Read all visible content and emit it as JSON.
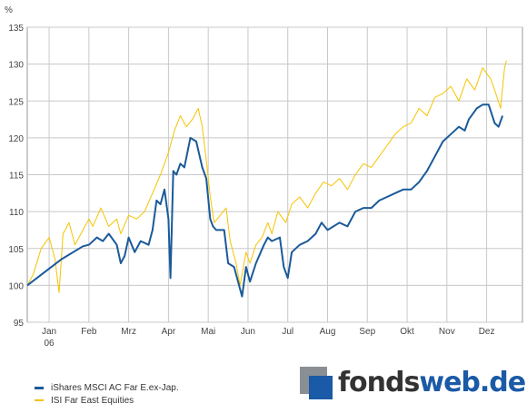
{
  "chart_data": {
    "type": "line",
    "unit_label": "%",
    "ylim": [
      95,
      135
    ],
    "y_ticks": [
      95,
      100,
      105,
      110,
      115,
      120,
      125,
      130,
      135
    ],
    "x_ticks": [
      {
        "label": "Jan",
        "sub": "06",
        "pos": 1.0
      },
      {
        "label": "Feb",
        "sub": "",
        "pos": 2.0
      },
      {
        "label": "Mrz",
        "sub": "",
        "pos": 3.0
      },
      {
        "label": "Apr",
        "sub": "",
        "pos": 4.0
      },
      {
        "label": "Mai",
        "sub": "",
        "pos": 5.0
      },
      {
        "label": "Jun",
        "sub": "",
        "pos": 6.0
      },
      {
        "label": "Jul",
        "sub": "",
        "pos": 7.0
      },
      {
        "label": "Aug",
        "sub": "",
        "pos": 8.0
      },
      {
        "label": "Sep",
        "sub": "",
        "pos": 9.0
      },
      {
        "label": "Okt",
        "sub": "",
        "pos": 10.0
      },
      {
        "label": "Nov",
        "sub": "",
        "pos": 11.0
      },
      {
        "label": "Dez",
        "sub": "",
        "pos": 12.0
      }
    ],
    "xlim": [
      0.45,
      12.9
    ],
    "grid": true,
    "series": [
      {
        "name": "iShares MSCI AC Far E.ex-Jap.",
        "color": "#1a5a9a",
        "points": [
          [
            0.45,
            100.0
          ],
          [
            1.3,
            103.5
          ],
          [
            1.85,
            105.3
          ],
          [
            2.0,
            105.5
          ],
          [
            2.2,
            106.5
          ],
          [
            2.35,
            106.0
          ],
          [
            2.5,
            107.0
          ],
          [
            2.7,
            105.5
          ],
          [
            2.8,
            103.0
          ],
          [
            2.9,
            104.0
          ],
          [
            3.0,
            106.5
          ],
          [
            3.15,
            104.5
          ],
          [
            3.3,
            106.0
          ],
          [
            3.5,
            105.5
          ],
          [
            3.6,
            107.5
          ],
          [
            3.7,
            111.5
          ],
          [
            3.8,
            111.0
          ],
          [
            3.9,
            113.0
          ],
          [
            4.0,
            109.0
          ],
          [
            4.05,
            101.0
          ],
          [
            4.12,
            115.5
          ],
          [
            4.2,
            115.0
          ],
          [
            4.3,
            116.5
          ],
          [
            4.4,
            116.0
          ],
          [
            4.55,
            120.0
          ],
          [
            4.7,
            119.5
          ],
          [
            4.85,
            116.0
          ],
          [
            4.95,
            114.5
          ],
          [
            5.05,
            109.0
          ],
          [
            5.12,
            108.0
          ],
          [
            5.2,
            107.5
          ],
          [
            5.4,
            107.5
          ],
          [
            5.5,
            103.0
          ],
          [
            5.65,
            102.5
          ],
          [
            5.75,
            100.5
          ],
          [
            5.85,
            98.5
          ],
          [
            5.95,
            102.5
          ],
          [
            6.05,
            100.5
          ],
          [
            6.2,
            103.0
          ],
          [
            6.4,
            105.5
          ],
          [
            6.5,
            106.5
          ],
          [
            6.6,
            106.0
          ],
          [
            6.8,
            106.5
          ],
          [
            6.9,
            102.5
          ],
          [
            7.0,
            101.0
          ],
          [
            7.1,
            104.5
          ],
          [
            7.3,
            105.5
          ],
          [
            7.5,
            106.0
          ],
          [
            7.7,
            107.0
          ],
          [
            7.85,
            108.5
          ],
          [
            8.0,
            107.5
          ],
          [
            8.3,
            108.5
          ],
          [
            8.5,
            108.0
          ],
          [
            8.7,
            110.0
          ],
          [
            8.9,
            110.5
          ],
          [
            9.1,
            110.5
          ],
          [
            9.3,
            111.5
          ],
          [
            9.5,
            112.0
          ],
          [
            9.7,
            112.5
          ],
          [
            9.9,
            113.0
          ],
          [
            10.1,
            113.0
          ],
          [
            10.3,
            114.0
          ],
          [
            10.5,
            115.5
          ],
          [
            10.7,
            117.5
          ],
          [
            10.9,
            119.5
          ],
          [
            11.1,
            120.5
          ],
          [
            11.3,
            121.5
          ],
          [
            11.45,
            121.0
          ],
          [
            11.55,
            122.5
          ],
          [
            11.75,
            124.0
          ],
          [
            11.9,
            124.5
          ],
          [
            12.05,
            124.5
          ],
          [
            12.2,
            122.0
          ],
          [
            12.3,
            121.5
          ],
          [
            12.4,
            123.0
          ]
        ]
      },
      {
        "name": "ISI Far East Equities",
        "color": "#f5c400",
        "points": [
          [
            0.45,
            100.0
          ],
          [
            0.6,
            101.5
          ],
          [
            0.8,
            105.0
          ],
          [
            1.0,
            106.5
          ],
          [
            1.15,
            103.5
          ],
          [
            1.25,
            99.0
          ],
          [
            1.35,
            107.0
          ],
          [
            1.5,
            108.5
          ],
          [
            1.65,
            105.5
          ],
          [
            1.8,
            107.0
          ],
          [
            2.0,
            109.0
          ],
          [
            2.1,
            108.0
          ],
          [
            2.3,
            110.5
          ],
          [
            2.5,
            108.0
          ],
          [
            2.7,
            109.0
          ],
          [
            2.8,
            107.0
          ],
          [
            3.0,
            109.5
          ],
          [
            3.2,
            109.0
          ],
          [
            3.4,
            110.0
          ],
          [
            3.6,
            112.5
          ],
          [
            3.8,
            115.0
          ],
          [
            4.0,
            118.0
          ],
          [
            4.15,
            121.0
          ],
          [
            4.3,
            123.0
          ],
          [
            4.45,
            121.5
          ],
          [
            4.6,
            122.5
          ],
          [
            4.75,
            124.0
          ],
          [
            4.85,
            121.5
          ],
          [
            4.95,
            117.0
          ],
          [
            5.05,
            112.0
          ],
          [
            5.15,
            108.5
          ],
          [
            5.3,
            109.5
          ],
          [
            5.45,
            110.5
          ],
          [
            5.55,
            106.0
          ],
          [
            5.7,
            103.0
          ],
          [
            5.8,
            100.0
          ],
          [
            5.95,
            104.5
          ],
          [
            6.05,
            103.0
          ],
          [
            6.2,
            105.5
          ],
          [
            6.35,
            106.5
          ],
          [
            6.5,
            108.5
          ],
          [
            6.6,
            107.0
          ],
          [
            6.75,
            110.0
          ],
          [
            6.95,
            108.5
          ],
          [
            7.1,
            111.0
          ],
          [
            7.3,
            112.0
          ],
          [
            7.5,
            110.5
          ],
          [
            7.7,
            112.5
          ],
          [
            7.9,
            114.0
          ],
          [
            8.1,
            113.5
          ],
          [
            8.3,
            114.5
          ],
          [
            8.5,
            113.0
          ],
          [
            8.7,
            115.0
          ],
          [
            8.9,
            116.5
          ],
          [
            9.1,
            116.0
          ],
          [
            9.3,
            117.5
          ],
          [
            9.5,
            119.0
          ],
          [
            9.7,
            120.5
          ],
          [
            9.9,
            121.5
          ],
          [
            10.1,
            122.0
          ],
          [
            10.3,
            124.0
          ],
          [
            10.5,
            123.0
          ],
          [
            10.7,
            125.5
          ],
          [
            10.9,
            126.0
          ],
          [
            11.1,
            127.0
          ],
          [
            11.3,
            125.0
          ],
          [
            11.5,
            128.0
          ],
          [
            11.7,
            126.5
          ],
          [
            11.9,
            129.5
          ],
          [
            12.1,
            128.0
          ],
          [
            12.2,
            126.5
          ],
          [
            12.35,
            124.0
          ],
          [
            12.45,
            129.5
          ],
          [
            12.5,
            130.5
          ]
        ]
      }
    ]
  },
  "legend": [
    {
      "label": "iShares MSCI AC Far E.ex-Jap.",
      "color": "#1a5a9a"
    },
    {
      "label": "ISI Far East Equities",
      "color": "#f5c400"
    }
  ],
  "logo": {
    "part1": "fonds",
    "part2": "web.de"
  }
}
